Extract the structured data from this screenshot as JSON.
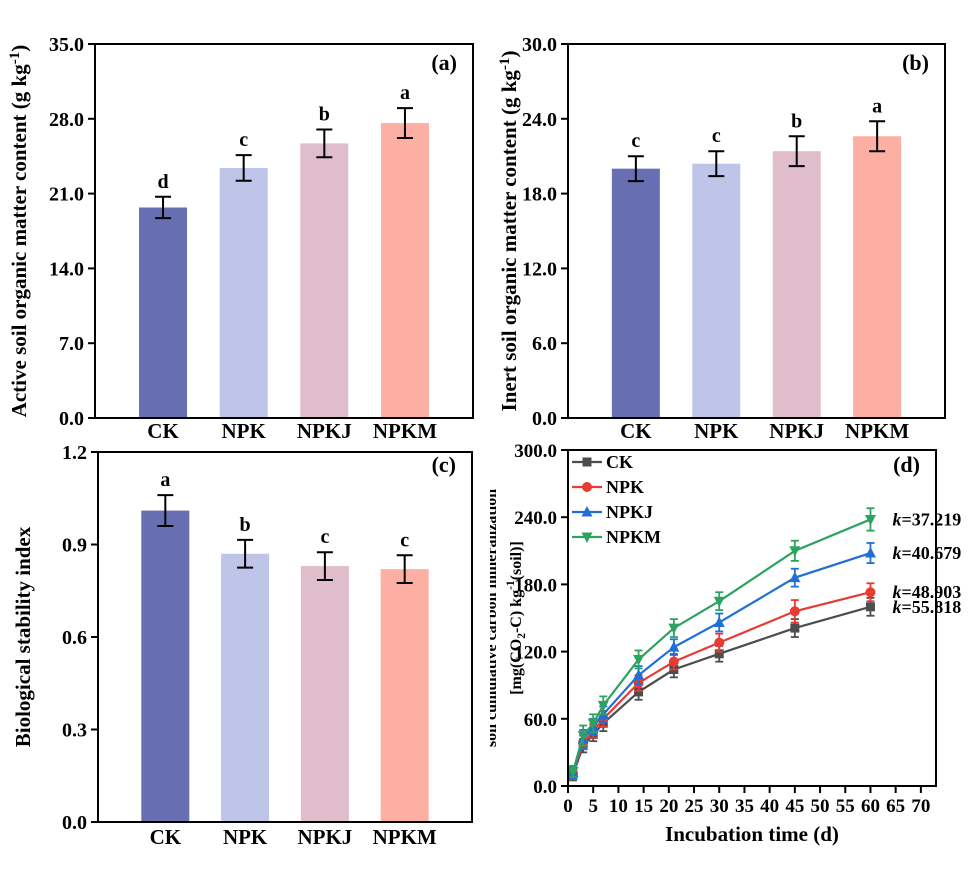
{
  "figure": {
    "background": "#ffffff",
    "axis_color": "#000000",
    "treatments": [
      "CK",
      "NPK",
      "NPKJ",
      "NPKM"
    ],
    "bar_colors": [
      "#676eb2",
      "#bec5e8",
      "#dfbdca",
      "#fdafa3"
    ],
    "line_colors": [
      "#4d4d4d",
      "#e73b33",
      "#1f6fd6",
      "#2da360"
    ]
  },
  "chart_data": [
    {
      "id": "a",
      "type": "bar",
      "panel_label": "(a)",
      "ylabel": "Active soil organic matter content (g kg^{-1})",
      "categories": [
        "CK",
        "NPK",
        "NPKJ",
        "NPKM"
      ],
      "values": [
        19.7,
        23.4,
        25.7,
        27.6
      ],
      "errors": [
        1.0,
        1.2,
        1.3,
        1.4
      ],
      "sig_letters": [
        "d",
        "c",
        "b",
        "a"
      ],
      "bar_colors": [
        "#676eb2",
        "#bec5e8",
        "#dfbdca",
        "#fdafa3"
      ],
      "ylim": [
        0,
        35
      ],
      "ytick_step": 7,
      "ytick_labels": [
        "0.0",
        "7.0",
        "14.0",
        "21.0",
        "28.0",
        "35.0"
      ]
    },
    {
      "id": "b",
      "type": "bar",
      "panel_label": "(b)",
      "ylabel": "Inert soil organic matter content (g kg^{-1})",
      "categories": [
        "CK",
        "NPK",
        "NPKJ",
        "NPKM"
      ],
      "values": [
        20.0,
        20.4,
        21.4,
        22.6
      ],
      "errors": [
        1.0,
        1.0,
        1.2,
        1.2
      ],
      "sig_letters": [
        "c",
        "c",
        "b",
        "a"
      ],
      "bar_colors": [
        "#676eb2",
        "#bec5e8",
        "#dfbdca",
        "#fdafa3"
      ],
      "ylim": [
        0,
        30
      ],
      "ytick_step": 6,
      "ytick_labels": [
        "0.0",
        "6.0",
        "12.0",
        "18.0",
        "24.0",
        "30.0"
      ]
    },
    {
      "id": "c",
      "type": "bar",
      "panel_label": "(c)",
      "ylabel": "Biological stability index",
      "categories": [
        "CK",
        "NPK",
        "NPKJ",
        "NPKM"
      ],
      "values": [
        1.01,
        0.87,
        0.83,
        0.82
      ],
      "errors": [
        0.05,
        0.045,
        0.045,
        0.045
      ],
      "sig_letters": [
        "a",
        "b",
        "c",
        "c"
      ],
      "bar_colors": [
        "#676eb2",
        "#bec5e8",
        "#dfbdca",
        "#fdafa3"
      ],
      "ylim": [
        0,
        1.2
      ],
      "ytick_step": 0.3,
      "ytick_labels": [
        "0.0",
        "0.3",
        "0.6",
        "0.9",
        "1.2"
      ]
    },
    {
      "id": "d",
      "type": "line",
      "panel_label": "(d)",
      "ylabel_line1": "soil cumulative carbon mineralization",
      "ylabel_line2": "[mg(CO_{2}-C) kg^{-1}(soil)]",
      "xlabel": "Incubation time (d)",
      "x": [
        1,
        3,
        5,
        7,
        14,
        21,
        30,
        45,
        60
      ],
      "series": [
        {
          "name": "CK",
          "color": "#4d4d4d",
          "marker": "square",
          "values": [
            10,
            36,
            46,
            56,
            84,
            104,
            118,
            141,
            160
          ],
          "errors": [
            5,
            6,
            6,
            7,
            7,
            7,
            7,
            8,
            8
          ],
          "k_label": "k=55.818"
        },
        {
          "name": "NPK",
          "color": "#e73b33",
          "marker": "circle",
          "values": [
            11,
            39,
            49,
            60,
            92,
            111,
            128,
            156,
            173
          ],
          "errors": [
            5,
            6,
            6,
            7,
            7,
            7,
            8,
            10,
            8
          ],
          "k_label": "k=48.903"
        },
        {
          "name": "NPKJ",
          "color": "#1f6fd6",
          "marker": "triangle-up",
          "values": [
            12,
            42,
            53,
            64,
            99,
            124,
            146,
            186,
            208
          ],
          "errors": [
            5,
            8,
            7,
            7,
            8,
            7,
            8,
            8,
            9
          ],
          "k_label": "k=40.679"
        },
        {
          "name": "NPKM",
          "color": "#2da360",
          "marker": "triangle-down",
          "values": [
            13,
            45,
            56,
            72,
            113,
            141,
            165,
            210,
            238
          ],
          "errors": [
            5,
            9,
            8,
            8,
            8,
            8,
            8,
            9,
            10
          ],
          "k_label": "k=37.219"
        }
      ],
      "legend": [
        "CK",
        "NPK",
        "NPKJ",
        "NPKM"
      ],
      "xlim": [
        0,
        73
      ],
      "xtick_step": 5,
      "xtick_max": 70,
      "ylim": [
        0,
        300
      ],
      "ytick_step": 60,
      "ytick_labels": [
        "0.0",
        "60.0",
        "120.0",
        "180.0",
        "240.0",
        "300.0"
      ]
    }
  ]
}
